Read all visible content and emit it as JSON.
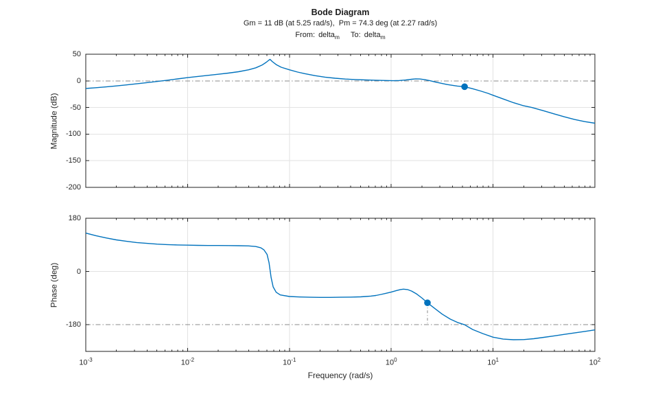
{
  "figure": {
    "title": "Bode Diagram",
    "subtitle": "Gm = 11 dB (at 5.25 rad/s),  Pm = 74.3 deg (at 2.27 rad/s)",
    "io": {
      "from_label": "From:",
      "from_signal": "delta",
      "from_signal_sub": "m",
      "to_label": "To:",
      "to_signal": "delta",
      "to_signal_sub": "m"
    }
  },
  "chart_data": {
    "type": "line",
    "title": "Bode Diagram",
    "subtitle": "Gm = 11 dB (at 5.25 rad/s),  Pm = 74.3 deg (at 2.27 rad/s)",
    "gain_margin": {
      "dB": 11,
      "at_rad_per_s": 5.25
    },
    "phase_margin": {
      "deg": 74.3,
      "at_rad_per_s": 2.27
    },
    "input_signal": "delta_m",
    "output_signal": "delta_m",
    "xlabel": "Frequency (rad/s)",
    "x_scale": "log10",
    "xlim_exponents": [
      -3,
      2
    ],
    "x_tick_exponents": [
      -3,
      -2,
      -1,
      0,
      1,
      2
    ],
    "x_tick_base": "10",
    "grid": "on",
    "legend": "none",
    "colors": {
      "curve": "#0072BD",
      "margin_line": "#8a8a8a",
      "grid": "#e2e2e2",
      "axis": "#1f1f1f",
      "text": "#262626"
    },
    "subplots": [
      {
        "name": "magnitude",
        "ylabel": "Magnitude (dB)",
        "ylim": [
          -200,
          50
        ],
        "yticks": [
          50,
          0,
          -50,
          -100,
          -150,
          -200
        ],
        "reference_line": 0,
        "marker": {
          "log10_x": 0.7202,
          "y": -11,
          "stem_to": 0
        },
        "points": [
          [
            -3.0,
            -14.3
          ],
          [
            -2.9,
            -12.9
          ],
          [
            -2.8,
            -11.3
          ],
          [
            -2.7,
            -9.5
          ],
          [
            -2.6,
            -7.6
          ],
          [
            -2.5,
            -5.6
          ],
          [
            -2.4,
            -3.4
          ],
          [
            -2.3,
            -1.1
          ],
          [
            -2.2,
            1.2
          ],
          [
            -2.1,
            3.6
          ],
          [
            -2.0,
            6.0
          ],
          [
            -1.9,
            8.2
          ],
          [
            -1.8,
            10.3
          ],
          [
            -1.7,
            12.4
          ],
          [
            -1.6,
            14.6
          ],
          [
            -1.5,
            17.2
          ],
          [
            -1.4,
            20.8
          ],
          [
            -1.33,
            24.5
          ],
          [
            -1.27,
            29.5
          ],
          [
            -1.23,
            34.5
          ],
          [
            -1.2,
            39.0
          ],
          [
            -1.19,
            40.3
          ],
          [
            -1.17,
            36.5
          ],
          [
            -1.13,
            30.5
          ],
          [
            -1.08,
            25.5
          ],
          [
            -1.0,
            20.8
          ],
          [
            -0.92,
            16.5
          ],
          [
            -0.85,
            13.5
          ],
          [
            -0.75,
            9.8
          ],
          [
            -0.65,
            7.0
          ],
          [
            -0.55,
            4.9
          ],
          [
            -0.45,
            3.4
          ],
          [
            -0.35,
            2.4
          ],
          [
            -0.25,
            1.7
          ],
          [
            -0.15,
            1.1
          ],
          [
            -0.05,
            0.6
          ],
          [
            0.02,
            0.3
          ],
          [
            0.08,
            0.6
          ],
          [
            0.14,
            1.5
          ],
          [
            0.2,
            2.9
          ],
          [
            0.24,
            3.8
          ],
          [
            0.28,
            3.5
          ],
          [
            0.33,
            2.2
          ],
          [
            0.38,
            0.3
          ],
          [
            0.45,
            -3.0
          ],
          [
            0.55,
            -7.0
          ],
          [
            0.65,
            -9.8
          ],
          [
            0.7202,
            -11.0
          ],
          [
            0.8,
            -14.8
          ],
          [
            0.875,
            -19.0
          ],
          [
            0.95,
            -23.5
          ],
          [
            1.0,
            -27.0
          ],
          [
            1.1,
            -34.0
          ],
          [
            1.2,
            -41.0
          ],
          [
            1.3,
            -46.8
          ],
          [
            1.38,
            -50.0
          ],
          [
            1.5,
            -56.5
          ],
          [
            1.6,
            -62.0
          ],
          [
            1.7,
            -67.5
          ],
          [
            1.8,
            -72.5
          ],
          [
            1.9,
            -76.5
          ],
          [
            2.0,
            -79.5
          ]
        ]
      },
      {
        "name": "phase",
        "ylabel": "Phase (deg)",
        "ylim": [
          -270,
          180
        ],
        "yticks": [
          180,
          0,
          -180
        ],
        "reference_line": -180,
        "marker": {
          "log10_x": 0.356,
          "y": -105.7,
          "stem_to": -180
        },
        "points": [
          [
            -3.0,
            130
          ],
          [
            -2.9,
            121
          ],
          [
            -2.8,
            113.5
          ],
          [
            -2.7,
            107
          ],
          [
            -2.6,
            102
          ],
          [
            -2.5,
            98
          ],
          [
            -2.4,
            95
          ],
          [
            -2.3,
            92.5
          ],
          [
            -2.2,
            91
          ],
          [
            -2.1,
            89.8
          ],
          [
            -2.0,
            89
          ],
          [
            -1.9,
            88.4
          ],
          [
            -1.8,
            88
          ],
          [
            -1.7,
            87.8
          ],
          [
            -1.6,
            87.6
          ],
          [
            -1.5,
            87.3
          ],
          [
            -1.4,
            86.5
          ],
          [
            -1.33,
            84.5
          ],
          [
            -1.28,
            80
          ],
          [
            -1.25,
            73
          ],
          [
            -1.22,
            58
          ],
          [
            -1.2,
            30
          ],
          [
            -1.19,
            5
          ],
          [
            -1.18,
            -20
          ],
          [
            -1.16,
            -52
          ],
          [
            -1.13,
            -70
          ],
          [
            -1.09,
            -79
          ],
          [
            -1.0,
            -84.5
          ],
          [
            -0.9,
            -86
          ],
          [
            -0.8,
            -87
          ],
          [
            -0.7,
            -87.5
          ],
          [
            -0.6,
            -87.5
          ],
          [
            -0.5,
            -87
          ],
          [
            -0.4,
            -86.5
          ],
          [
            -0.3,
            -85.5
          ],
          [
            -0.25,
            -84.5
          ],
          [
            -0.2,
            -83
          ],
          [
            -0.15,
            -81
          ],
          [
            -0.1,
            -77.5
          ],
          [
            -0.05,
            -73.5
          ],
          [
            0.0,
            -69.5
          ],
          [
            0.05,
            -64.5
          ],
          [
            0.09,
            -61
          ],
          [
            0.12,
            -59.5
          ],
          [
            0.16,
            -61
          ],
          [
            0.2,
            -66
          ],
          [
            0.25,
            -76
          ],
          [
            0.3,
            -89
          ],
          [
            0.356,
            -105.7
          ],
          [
            0.42,
            -123
          ],
          [
            0.5,
            -144
          ],
          [
            0.58,
            -161
          ],
          [
            0.65,
            -172
          ],
          [
            0.7202,
            -180
          ],
          [
            0.8,
            -196
          ],
          [
            0.9,
            -210
          ],
          [
            1.0,
            -222
          ],
          [
            1.1,
            -228.5
          ],
          [
            1.2,
            -230.5
          ],
          [
            1.3,
            -230
          ],
          [
            1.4,
            -227
          ],
          [
            1.5,
            -222.5
          ],
          [
            1.6,
            -217.5
          ],
          [
            1.7,
            -212.5
          ],
          [
            1.8,
            -207.5
          ],
          [
            1.9,
            -202.5
          ],
          [
            2.0,
            -197.5
          ]
        ]
      }
    ]
  }
}
